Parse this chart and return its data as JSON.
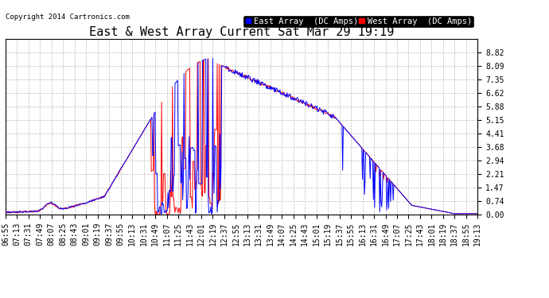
{
  "title": "East & West Array Current Sat Mar 29 19:19",
  "copyright": "Copyright 2014 Cartronics.com",
  "legend_east": "East Array  (DC Amps)",
  "legend_west": "West Array  (DC Amps)",
  "east_color": "#0000ff",
  "west_color": "#ff0000",
  "background_color": "#ffffff",
  "plot_bg_color": "#ffffff",
  "grid_color": "#bbbbbb",
  "ylim": [
    0.0,
    9.555
  ],
  "yticks": [
    0.0,
    0.74,
    1.47,
    2.21,
    2.94,
    3.68,
    4.41,
    5.15,
    5.88,
    6.62,
    7.35,
    8.09,
    8.82
  ],
  "title_fontsize": 11,
  "tick_fontsize": 7,
  "legend_fontsize": 7.5
}
